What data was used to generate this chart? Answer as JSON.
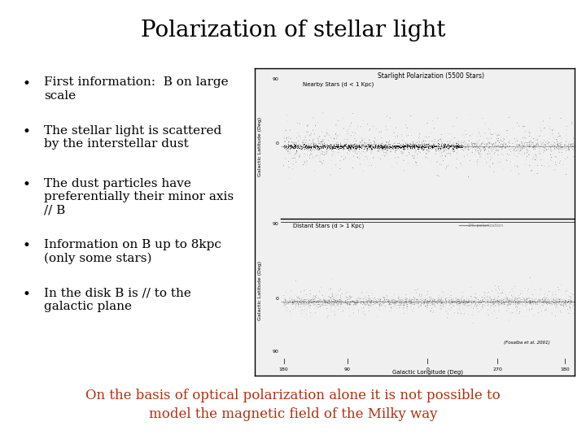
{
  "title": "Polarization of stellar light",
  "title_fontsize": 20,
  "title_font": "DejaVu Serif",
  "bullet_items": [
    {
      "parts": [
        [
          "First information:  ",
          false
        ],
        [
          "B",
          true
        ],
        [
          " on large\nscale",
          false
        ]
      ]
    },
    {
      "parts": [
        [
          "The stellar light is scattered\nby the interstellar dust",
          false
        ]
      ]
    },
    {
      "parts": [
        [
          "The dust particles have\npreferentially their minor axis\n// ",
          false
        ],
        [
          "B",
          true
        ]
      ]
    },
    {
      "parts": [
        [
          "Information on ",
          false
        ],
        [
          "B",
          true
        ],
        [
          " up to 8kpc\n(only some stars)",
          false
        ]
      ]
    },
    {
      "parts": [
        [
          "In the disk B is // to the\ngalactic plane",
          false
        ]
      ]
    }
  ],
  "footer_line1": "On the basis of optical polarization alone it is not possible to",
  "footer_line2": "model the magnetic field of the Milky way",
  "footer_color": "#b03010",
  "footer_fontsize": 12,
  "bg_color": "#ffffff",
  "text_color": "#000000",
  "bullet_fontsize": 11,
  "bullet_font": "DejaVu Serif",
  "img_title": "Starlight Polarization (5500 Stars)",
  "near_label": "Nearby Stars (d < 1 Kpc)",
  "dist_label": "Distant Stars (d > 1 Kpc)",
  "pol_label": "— 2% polarization",
  "citation": "(Fosalba et al. 2001)",
  "xlabel": "Galactic Longitude (Deg)",
  "ylabel_upper": "Galactic Latitude (Deg)",
  "ylabel_lower": "Galactic Latitude (Deg)",
  "xtick_labels": [
    "180",
    "90",
    "0",
    "270",
    "180"
  ],
  "upper_ytick_labels": [
    "90",
    "0"
  ],
  "lower_ytick_labels": [
    "90",
    "0",
    "90"
  ],
  "img_bg": "#f0f0f0"
}
